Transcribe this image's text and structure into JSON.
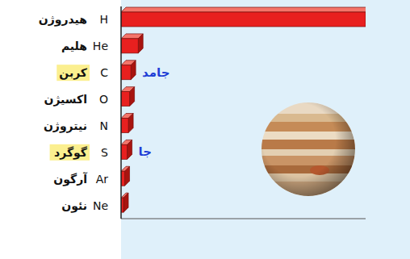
{
  "chart_data": {
    "type": "bar",
    "orientation": "horizontal",
    "categories": [
      "H",
      "He",
      "C",
      "O",
      "N",
      "S",
      "Ar",
      "Ne"
    ],
    "names": [
      "هیدروژن",
      "هلیم",
      "کربن",
      "اکسیژن",
      "نیتروژن",
      "گوگرد",
      "آرگون",
      "نئون"
    ],
    "values": [
      100,
      7,
      4,
      3.5,
      3,
      2.5,
      1.5,
      1
    ],
    "color": "#e8201f",
    "xlim": [
      0,
      100
    ],
    "tick_labels": "y",
    "annotations": [
      {
        "category": "C",
        "text": "جامد"
      },
      {
        "category": "S",
        "text": "جا"
      }
    ]
  }
}
